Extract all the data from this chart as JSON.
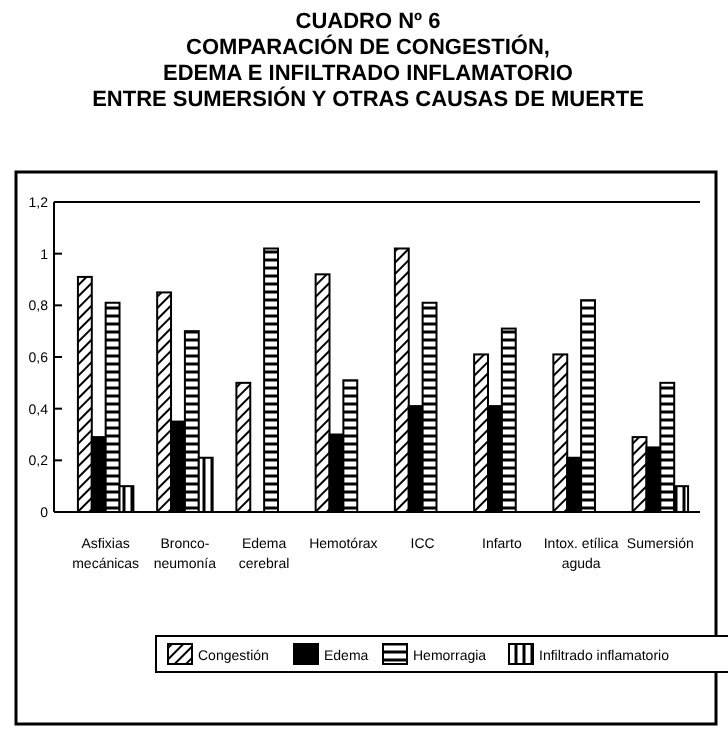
{
  "chart_data": {
    "type": "bar",
    "title": "CUADRO Nº 6\nCOMPARACIÓN DE CONGESTIÓN,\nEDEMA E INFILTRADO INFLAMATORIO\nENTRE SUMERSIÓN Y OTRAS CAUSAS DE MUERTE",
    "categories": [
      "Asfixias\nmecánicas",
      "Bronco-\nneumonía",
      "Edema\ncerebral",
      "Hemotórax",
      "ICC",
      "Infarto",
      "Intox. etílica\naguda",
      "Sumersión"
    ],
    "series": [
      {
        "name": "Congestión",
        "color": "#000000",
        "values": [
          0.91,
          0.85,
          0.5,
          0.92,
          1.02,
          0.61,
          0.61,
          0.29
        ]
      },
      {
        "name": "Edema",
        "color": "#000000",
        "values": [
          0.29,
          0.35,
          null,
          0.3,
          0.41,
          0.41,
          0.21,
          0.25
        ]
      },
      {
        "name": "Hemorragia",
        "color": "#000000",
        "values": [
          0.81,
          0.7,
          1.02,
          0.51,
          0.81,
          0.71,
          0.82,
          0.5
        ]
      },
      {
        "name": "Infiltrado inflamatorio",
        "color": "#000000",
        "values": [
          0.1,
          0.21,
          null,
          null,
          null,
          null,
          null,
          0.1
        ]
      }
    ],
    "ylim": [
      0,
      1.2
    ],
    "yticks": [
      0,
      {
        "value": 0.2,
        "label": "0,2"
      },
      {
        "value": 0.4,
        "label": "0,4"
      },
      {
        "value": 0.6,
        "label": "0,6"
      },
      {
        "value": 0.8,
        "label": "0,8"
      },
      1,
      {
        "value": 1.2,
        "label": "1,2"
      }
    ],
    "grid": false,
    "legend": "bottom"
  }
}
